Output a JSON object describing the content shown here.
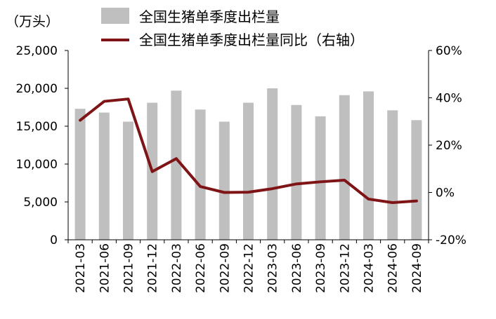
{
  "chart_data": {
    "type": "bar+line",
    "unit_label": "（万头）",
    "categories": [
      "2021-03",
      "2021-06",
      "2021-09",
      "2021-12",
      "2022-03",
      "2022-06",
      "2022-09",
      "2022-12",
      "2023-03",
      "2023-06",
      "2023-09",
      "2023-12",
      "2024-03",
      "2024-06",
      "2024-09"
    ],
    "series": [
      {
        "name": "全国生猪单季度出栏量",
        "type": "bar",
        "axis": "left",
        "color": "#bfbfbf",
        "values": [
          17300,
          16800,
          15600,
          18100,
          19700,
          17200,
          15600,
          18100,
          20000,
          17800,
          16300,
          19100,
          19600,
          17100,
          15800
        ]
      },
      {
        "name": "全国生猪单季度出栏量同比（右轴）",
        "type": "line",
        "axis": "right",
        "color": "#7f1416",
        "values": [
          30.5,
          38.5,
          39.5,
          8.8,
          14.3,
          2.5,
          0.0,
          0.1,
          1.6,
          3.6,
          4.5,
          5.2,
          -2.8,
          -4.3,
          -3.6
        ]
      }
    ],
    "left_axis": {
      "min": 0,
      "max": 25000,
      "ticks": [
        "0",
        "5,000",
        "10,000",
        "15,000",
        "20,000",
        "25,000"
      ],
      "tick_values": [
        0,
        5000,
        10000,
        15000,
        20000,
        25000
      ]
    },
    "right_axis": {
      "min": -20,
      "max": 60,
      "ticks": [
        "-20%",
        "0%",
        "20%",
        "40%",
        "60%"
      ],
      "tick_values": [
        -20,
        0,
        20,
        40,
        60
      ]
    },
    "grid": false,
    "legend_position": "top"
  }
}
